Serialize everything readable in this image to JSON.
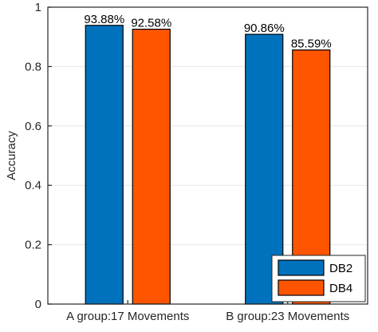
{
  "chart_data": {
    "type": "bar",
    "categories": [
      "A group:17 Movements",
      "B group:23 Movements"
    ],
    "series": [
      {
        "name": "DB2",
        "values": [
          0.9388,
          0.9086
        ],
        "labels": [
          "93.88%",
          "90.86%"
        ],
        "color": "#0072BD"
      },
      {
        "name": "DB4",
        "values": [
          0.9258,
          0.8559
        ],
        "labels": [
          "92.58%",
          "85.59%"
        ],
        "color": "#FF5500"
      }
    ],
    "title": "",
    "xlabel": "",
    "ylabel": "Accuracy",
    "ylim": [
      0,
      1
    ],
    "yticks": [
      0,
      0.2,
      0.4,
      0.6,
      0.8,
      1
    ],
    "ytick_labels": [
      "0",
      "0.2",
      "0.4",
      "0.6",
      "0.8",
      "1"
    ],
    "grid": true,
    "legend_position": "bottom-right"
  }
}
